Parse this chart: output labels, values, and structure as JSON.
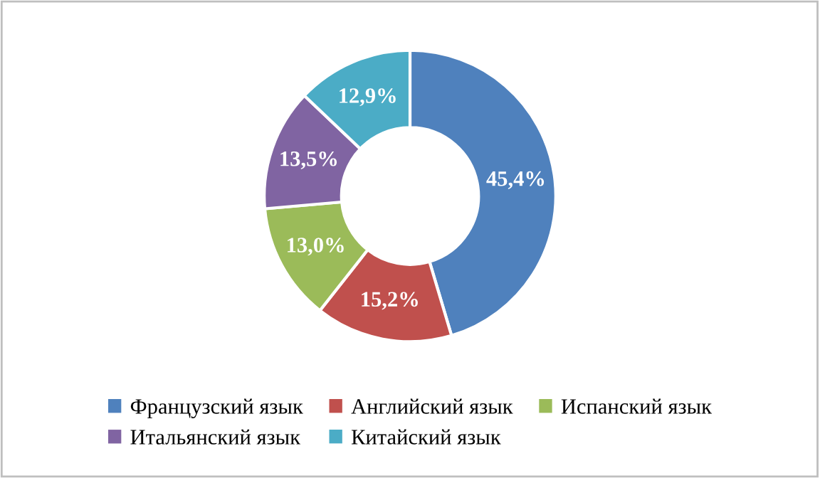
{
  "chart_data": {
    "type": "donut",
    "categories": [
      "Французский язык",
      "Английский язык",
      "Испанский язык",
      "Итальянский язык",
      "Китайский язык"
    ],
    "values": [
      45.4,
      15.2,
      13.0,
      13.5,
      12.9
    ],
    "colors": [
      "#4f81bd",
      "#c0504d",
      "#9bbb59",
      "#8064a2",
      "#4bacc6"
    ],
    "value_labels": [
      "45,4%",
      "15,2%",
      "13,0%",
      "13,5%",
      "12,9%"
    ],
    "legend": "bottom"
  }
}
